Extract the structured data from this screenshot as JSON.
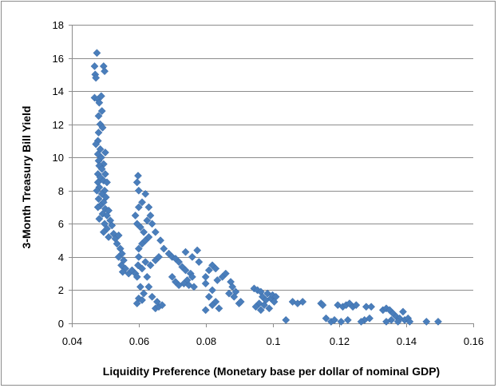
{
  "chart_data": {
    "type": "scatter",
    "title": "",
    "xlabel": "Liquidity Preference (Monetary base per dollar of nominal GDP)",
    "ylabel": "3-Month Treasury Bill Yield",
    "xlim": [
      0.04,
      0.16
    ],
    "ylim": [
      0,
      18
    ],
    "x_ticks": [
      0.04,
      0.06,
      0.08,
      0.1,
      0.12,
      0.14,
      0.16
    ],
    "x_tick_labels": [
      "0.04",
      "0.06",
      "0.08",
      "0.1",
      "0.12",
      "0.14",
      "0.16"
    ],
    "y_ticks": [
      0,
      2,
      4,
      6,
      8,
      10,
      12,
      14,
      16,
      18
    ],
    "y_tick_labels": [
      "0",
      "2",
      "4",
      "6",
      "8",
      "10",
      "12",
      "14",
      "16",
      "18"
    ],
    "grid": "horizontal",
    "legend": "none",
    "marker": "diamond",
    "marker_color": "#4a7ebb",
    "series": [
      {
        "points": [
          [
            0.0475,
            16.3
          ],
          [
            0.0468,
            15.5
          ],
          [
            0.0495,
            15.5
          ],
          [
            0.0498,
            15.2
          ],
          [
            0.047,
            15.0
          ],
          [
            0.0472,
            14.8
          ],
          [
            0.0468,
            13.6
          ],
          [
            0.0478,
            13.5
          ],
          [
            0.0488,
            13.7
          ],
          [
            0.0482,
            13.3
          ],
          [
            0.049,
            12.8
          ],
          [
            0.048,
            12.5
          ],
          [
            0.0485,
            12.0
          ],
          [
            0.0492,
            11.8
          ],
          [
            0.048,
            11.5
          ],
          [
            0.0478,
            11.0
          ],
          [
            0.0472,
            10.8
          ],
          [
            0.0485,
            10.5
          ],
          [
            0.0478,
            10.2
          ],
          [
            0.05,
            10.3
          ],
          [
            0.0488,
            10.0
          ],
          [
            0.048,
            9.8
          ],
          [
            0.0495,
            9.6
          ],
          [
            0.0482,
            9.5
          ],
          [
            0.049,
            9.3
          ],
          [
            0.0478,
            9.0
          ],
          [
            0.05,
            9.0
          ],
          [
            0.0485,
            8.8
          ],
          [
            0.0495,
            8.6
          ],
          [
            0.0478,
            8.5
          ],
          [
            0.0505,
            8.5
          ],
          [
            0.0482,
            8.2
          ],
          [
            0.0498,
            8.0
          ],
          [
            0.0475,
            8.0
          ],
          [
            0.049,
            7.8
          ],
          [
            0.0502,
            7.6
          ],
          [
            0.048,
            7.5
          ],
          [
            0.0495,
            7.3
          ],
          [
            0.0485,
            7.1
          ],
          [
            0.0478,
            7.0
          ],
          [
            0.05,
            6.9
          ],
          [
            0.051,
            6.8
          ],
          [
            0.0492,
            6.6
          ],
          [
            0.0505,
            6.5
          ],
          [
            0.0482,
            6.3
          ],
          [
            0.0515,
            6.2
          ],
          [
            0.0498,
            6.0
          ],
          [
            0.052,
            5.9
          ],
          [
            0.0505,
            5.7
          ],
          [
            0.0495,
            5.5
          ],
          [
            0.0525,
            5.4
          ],
          [
            0.051,
            5.2
          ],
          [
            0.053,
            5.1
          ],
          [
            0.054,
            5.3
          ],
          [
            0.0535,
            4.8
          ],
          [
            0.0545,
            4.5
          ],
          [
            0.055,
            4.2
          ],
          [
            0.054,
            4.0
          ],
          [
            0.0555,
            3.8
          ],
          [
            0.0548,
            3.5
          ],
          [
            0.056,
            3.3
          ],
          [
            0.0552,
            3.1
          ],
          [
            0.057,
            3.0
          ],
          [
            0.058,
            3.2
          ],
          [
            0.059,
            3.0
          ],
          [
            0.06,
            4.0
          ],
          [
            0.0598,
            3.5
          ],
          [
            0.0595,
            2.8
          ],
          [
            0.0605,
            2.2
          ],
          [
            0.06,
            1.5
          ],
          [
            0.0595,
            1.2
          ],
          [
            0.061,
            1.4
          ],
          [
            0.0615,
            1.8
          ],
          [
            0.065,
            0.9
          ],
          [
            0.066,
            1.0
          ],
          [
            0.067,
            1.1
          ],
          [
            0.0655,
            1.3
          ],
          [
            0.064,
            1.6
          ],
          [
            0.063,
            2.2
          ],
          [
            0.0625,
            2.8
          ],
          [
            0.061,
            3.3
          ],
          [
            0.062,
            3.7
          ],
          [
            0.0635,
            3.5
          ],
          [
            0.065,
            3.8
          ],
          [
            0.066,
            4.0
          ],
          [
            0.06,
            4.5
          ],
          [
            0.061,
            4.8
          ],
          [
            0.062,
            5.0
          ],
          [
            0.063,
            5.2
          ],
          [
            0.0615,
            5.5
          ],
          [
            0.0605,
            5.8
          ],
          [
            0.0595,
            6.0
          ],
          [
            0.0625,
            6.2
          ],
          [
            0.064,
            6.0
          ],
          [
            0.0635,
            6.5
          ],
          [
            0.059,
            6.5
          ],
          [
            0.06,
            7.0
          ],
          [
            0.061,
            7.3
          ],
          [
            0.062,
            7.8
          ],
          [
            0.06,
            8.0
          ],
          [
            0.0595,
            8.5
          ],
          [
            0.0598,
            8.9
          ],
          [
            0.063,
            7.0
          ],
          [
            0.065,
            5.5
          ],
          [
            0.0665,
            5.0
          ],
          [
            0.0675,
            4.5
          ],
          [
            0.069,
            4.2
          ],
          [
            0.07,
            4.0
          ],
          [
            0.071,
            3.9
          ],
          [
            0.072,
            3.7
          ],
          [
            0.073,
            3.4
          ],
          [
            0.074,
            3.2
          ],
          [
            0.0755,
            3.0
          ],
          [
            0.076,
            2.8
          ],
          [
            0.0745,
            2.6
          ],
          [
            0.0735,
            2.4
          ],
          [
            0.075,
            2.3
          ],
          [
            0.0765,
            2.2
          ],
          [
            0.07,
            2.8
          ],
          [
            0.071,
            2.5
          ],
          [
            0.072,
            2.3
          ],
          [
            0.074,
            4.3
          ],
          [
            0.076,
            4.0
          ],
          [
            0.0775,
            4.4
          ],
          [
            0.078,
            3.7
          ],
          [
            0.08,
            2.8
          ],
          [
            0.081,
            3.2
          ],
          [
            0.082,
            3.5
          ],
          [
            0.083,
            3.3
          ],
          [
            0.0835,
            2.6
          ],
          [
            0.085,
            2.8
          ],
          [
            0.086,
            3.0
          ],
          [
            0.0875,
            2.5
          ],
          [
            0.089,
            1.9
          ],
          [
            0.0885,
            1.6
          ],
          [
            0.087,
            1.8
          ],
          [
            0.088,
            2.2
          ],
          [
            0.08,
            2.4
          ],
          [
            0.082,
            2.0
          ],
          [
            0.081,
            1.6
          ],
          [
            0.08,
            0.8
          ],
          [
            0.083,
            1.3
          ],
          [
            0.084,
            0.9
          ],
          [
            0.082,
            1.1
          ],
          [
            0.09,
            1.2
          ],
          [
            0.0905,
            1.3
          ],
          [
            0.0945,
            2.1
          ],
          [
            0.0955,
            2.0
          ],
          [
            0.0965,
            1.9
          ],
          [
            0.097,
            1.6
          ],
          [
            0.0985,
            1.8
          ],
          [
            0.0995,
            1.5
          ],
          [
            0.1,
            1.7
          ],
          [
            0.101,
            1.6
          ],
          [
            0.098,
            1.4
          ],
          [
            0.096,
            1.2
          ],
          [
            0.095,
            1.0
          ],
          [
            0.0965,
            0.8
          ],
          [
            0.0975,
            1.1
          ],
          [
            0.099,
            0.9
          ],
          [
            0.1005,
            1.3
          ],
          [
            0.104,
            0.2
          ],
          [
            0.106,
            1.3
          ],
          [
            0.1075,
            1.2
          ],
          [
            0.109,
            1.3
          ],
          [
            0.1145,
            1.2
          ],
          [
            0.115,
            1.1
          ],
          [
            0.116,
            0.3
          ],
          [
            0.1175,
            0.1
          ],
          [
            0.1185,
            0.2
          ],
          [
            0.1195,
            1.1
          ],
          [
            0.121,
            1.0
          ],
          [
            0.122,
            1.1
          ],
          [
            0.123,
            1.2
          ],
          [
            0.124,
            1.0
          ],
          [
            0.125,
            1.1
          ],
          [
            0.1225,
            0.2
          ],
          [
            0.1205,
            0.1
          ],
          [
            0.128,
            1.0
          ],
          [
            0.1295,
            1.0
          ],
          [
            0.1275,
            0.2
          ],
          [
            0.1265,
            0.1
          ],
          [
            0.129,
            0.3
          ],
          [
            0.133,
            0.8
          ],
          [
            0.134,
            0.9
          ],
          [
            0.135,
            0.8
          ],
          [
            0.136,
            0.6
          ],
          [
            0.137,
            0.4
          ],
          [
            0.138,
            0.3
          ],
          [
            0.139,
            0.7
          ],
          [
            0.1375,
            0.1
          ],
          [
            0.1395,
            0.2
          ],
          [
            0.1405,
            0.3
          ],
          [
            0.141,
            0.1
          ],
          [
            0.1355,
            0.2
          ],
          [
            0.134,
            0.1
          ],
          [
            0.146,
            0.1
          ],
          [
            0.1495,
            0.1
          ]
        ]
      }
    ]
  }
}
